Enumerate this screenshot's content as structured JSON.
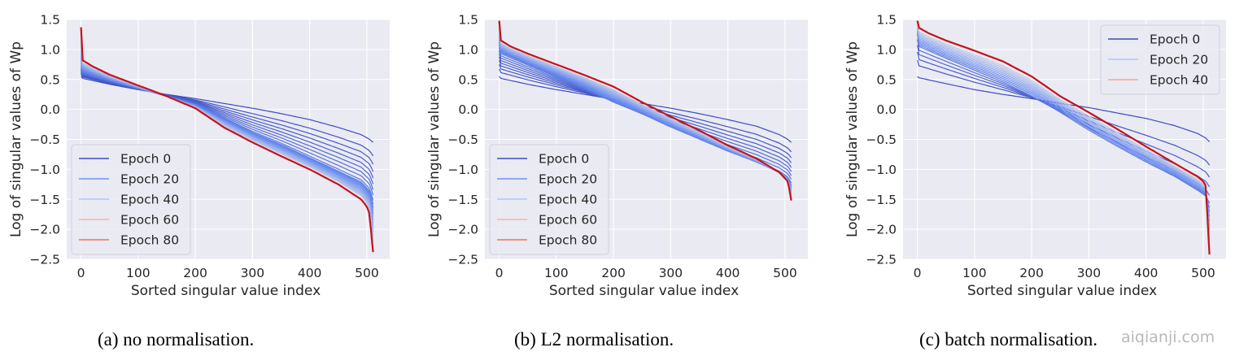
{
  "figure": {
    "captions": [
      "(a) no normalisation.",
      "(b) L2 normalisation.",
      "(c) batch normalisation."
    ],
    "watermark": "aiqianji.com",
    "colors": {
      "background": "#eaeaf2",
      "grid": "#ffffff",
      "epoch_0": "#3b4cc0",
      "epoch_20": "#6f92f3",
      "epoch_40": "#aac7fd",
      "epoch_60": "#f7b89c",
      "epoch_80": "#e7745b",
      "final": "#c5121c"
    }
  },
  "chart_data": [
    {
      "type": "line",
      "title": "",
      "caption": "(a) no normalisation.",
      "xlabel": "Sorted singular value index",
      "ylabel": "Log of singular values of Wp",
      "xlim": [
        -25,
        540
      ],
      "ylim": [
        -2.5,
        1.5
      ],
      "xticks": [
        0,
        100,
        200,
        300,
        400,
        500
      ],
      "xtick_labels": [
        "0",
        "100",
        "200",
        "300",
        "400",
        "500"
      ],
      "yticks": [
        1.5,
        1.0,
        0.5,
        0.0,
        -0.5,
        -1.0,
        -1.5,
        -2.0,
        -2.5
      ],
      "ytick_labels": [
        "1.5",
        "1.0",
        "0.5",
        "0.0",
        "−0.5",
        "−1.0",
        "−1.5",
        "−2.0",
        "−2.5"
      ],
      "grid": true,
      "legend": {
        "placement": "lower-left",
        "entries": [
          {
            "label": "Epoch 0",
            "color": "#3b4cc0"
          },
          {
            "label": "Epoch 20",
            "color": "#6f92f3"
          },
          {
            "label": "Epoch 40",
            "color": "#aac7fd"
          },
          {
            "label": "Epoch 60",
            "color": "#f7b89c"
          },
          {
            "label": "Epoch 80",
            "color": "#e7745b"
          }
        ]
      },
      "num_epochs": 85,
      "series": [
        {
          "name": "Epoch 0",
          "x": [
            0,
            2,
            50,
            100,
            150,
            200,
            250,
            300,
            350,
            400,
            450,
            490,
            505,
            511
          ],
          "y": [
            0.55,
            0.52,
            0.42,
            0.33,
            0.25,
            0.18,
            0.1,
            0.02,
            -0.07,
            -0.17,
            -0.3,
            -0.42,
            -0.5,
            -0.55
          ]
        },
        {
          "name": "Epoch 20",
          "x": [
            0,
            2,
            50,
            100,
            150,
            200,
            250,
            300,
            350,
            400,
            450,
            490,
            505,
            511
          ],
          "y": [
            0.7,
            0.62,
            0.48,
            0.35,
            0.22,
            0.08,
            -0.15,
            -0.38,
            -0.58,
            -0.8,
            -1.02,
            -1.2,
            -1.35,
            -1.55
          ]
        },
        {
          "name": "Epoch 80",
          "x": [
            0,
            1,
            3,
            20,
            50,
            100,
            150,
            200,
            250,
            300,
            350,
            400,
            450,
            490,
            500,
            505,
            508,
            511
          ],
          "y": [
            1.37,
            1.0,
            0.82,
            0.72,
            0.58,
            0.4,
            0.22,
            0.02,
            -0.3,
            -0.55,
            -0.78,
            -1.0,
            -1.25,
            -1.5,
            -1.62,
            -1.75,
            -2.1,
            -2.38
          ]
        }
      ]
    },
    {
      "type": "line",
      "title": "",
      "caption": "(b) L2 normalisation.",
      "xlabel": "Sorted singular value index",
      "ylabel": "Log of singular values of Wp",
      "xlim": [
        -25,
        540
      ],
      "ylim": [
        -2.5,
        1.5
      ],
      "xticks": [
        0,
        100,
        200,
        300,
        400,
        500
      ],
      "xtick_labels": [
        "0",
        "100",
        "200",
        "300",
        "400",
        "500"
      ],
      "yticks": [
        1.5,
        1.0,
        0.5,
        0.0,
        -0.5,
        -1.0,
        -1.5,
        -2.0,
        -2.5
      ],
      "ytick_labels": [
        "1.5",
        "1.0",
        "0.5",
        "0.0",
        "−0.5",
        "−1.0",
        "−1.5",
        "−2.0",
        "−2.5"
      ],
      "grid": true,
      "legend": {
        "placement": "lower-left",
        "entries": [
          {
            "label": "Epoch 0",
            "color": "#3b4cc0"
          },
          {
            "label": "Epoch 20",
            "color": "#6f92f3"
          },
          {
            "label": "Epoch 40",
            "color": "#aac7fd"
          },
          {
            "label": "Epoch 60",
            "color": "#f7b89c"
          },
          {
            "label": "Epoch 80",
            "color": "#e7745b"
          }
        ]
      },
      "num_epochs": 85,
      "series": [
        {
          "name": "Epoch 0",
          "x": [
            0,
            2,
            50,
            100,
            150,
            200,
            250,
            300,
            350,
            400,
            450,
            490,
            505,
            511
          ],
          "y": [
            0.55,
            0.52,
            0.42,
            0.33,
            0.25,
            0.17,
            0.1,
            0.02,
            -0.07,
            -0.17,
            -0.28,
            -0.42,
            -0.5,
            -0.55
          ]
        },
        {
          "name": "Epoch 20",
          "x": [
            0,
            2,
            50,
            100,
            150,
            200,
            250,
            300,
            350,
            400,
            450,
            490,
            505,
            511
          ],
          "y": [
            1.1,
            0.95,
            0.75,
            0.55,
            0.35,
            0.12,
            -0.08,
            -0.3,
            -0.5,
            -0.7,
            -0.88,
            -1.05,
            -1.15,
            -1.25
          ]
        },
        {
          "name": "Epoch 80",
          "x": [
            0,
            1,
            3,
            20,
            50,
            100,
            150,
            200,
            250,
            300,
            350,
            400,
            450,
            490,
            500,
            505,
            508,
            511
          ],
          "y": [
            1.48,
            1.25,
            1.15,
            1.05,
            0.93,
            0.75,
            0.57,
            0.38,
            0.12,
            -0.12,
            -0.35,
            -0.6,
            -0.82,
            -1.05,
            -1.15,
            -1.2,
            -1.35,
            -1.52
          ]
        }
      ]
    },
    {
      "type": "line",
      "title": "",
      "caption": "(c) batch normalisation.",
      "xlabel": "Sorted singular value index",
      "ylabel": "Log of singular values of Wp",
      "xlim": [
        -25,
        540
      ],
      "ylim": [
        -2.5,
        1.5
      ],
      "xticks": [
        0,
        100,
        200,
        300,
        400,
        500
      ],
      "xtick_labels": [
        "0",
        "100",
        "200",
        "300",
        "400",
        "500"
      ],
      "yticks": [
        1.5,
        1.0,
        0.5,
        0.0,
        -0.5,
        -1.0,
        -1.5,
        -2.0,
        -2.5
      ],
      "ytick_labels": [
        "1.5",
        "1.0",
        "0.5",
        "0.0",
        "−0.5",
        "−1.0",
        "−1.5",
        "−2.0",
        "−2.5"
      ],
      "grid": true,
      "legend": {
        "placement": "upper-right",
        "entries": [
          {
            "label": "Epoch 0",
            "color": "#3b4cc0"
          },
          {
            "label": "Epoch 20",
            "color": "#aac7fd"
          },
          {
            "label": "Epoch 40",
            "color": "#f7a889"
          }
        ]
      },
      "num_epochs": 45,
      "series": [
        {
          "name": "Epoch 0",
          "x": [
            0,
            2,
            50,
            100,
            150,
            200,
            250,
            300,
            350,
            400,
            450,
            490,
            505,
            511
          ],
          "y": [
            0.55,
            0.53,
            0.43,
            0.33,
            0.25,
            0.18,
            0.1,
            0.03,
            -0.06,
            -0.15,
            -0.27,
            -0.4,
            -0.48,
            -0.54
          ]
        },
        {
          "name": "Epoch 20",
          "x": [
            0,
            2,
            50,
            100,
            150,
            200,
            250,
            300,
            350,
            400,
            450,
            490,
            505,
            511
          ],
          "y": [
            1.25,
            1.05,
            0.85,
            0.65,
            0.45,
            0.22,
            -0.05,
            -0.35,
            -0.62,
            -0.88,
            -1.12,
            -1.35,
            -1.45,
            -1.55
          ]
        },
        {
          "name": "Epoch 40",
          "x": [
            0,
            1,
            3,
            20,
            50,
            100,
            150,
            200,
            250,
            300,
            350,
            400,
            450,
            490,
            500,
            505,
            508,
            511
          ],
          "y": [
            1.48,
            1.42,
            1.36,
            1.27,
            1.15,
            0.98,
            0.8,
            0.55,
            0.22,
            -0.05,
            -0.33,
            -0.62,
            -0.9,
            -1.12,
            -1.2,
            -1.28,
            -1.9,
            -2.42
          ]
        }
      ]
    }
  ]
}
